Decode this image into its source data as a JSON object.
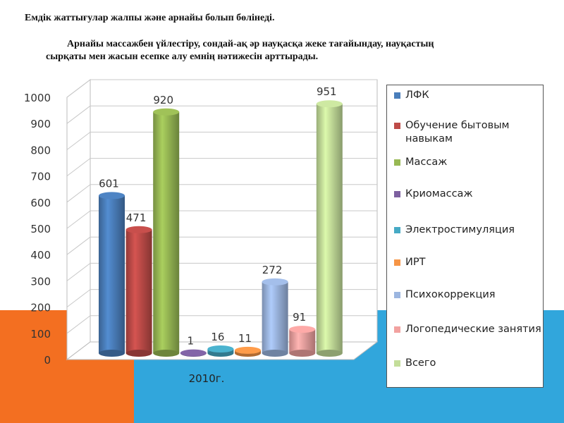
{
  "text": {
    "line1": "Емдік жаттығулар жалпы және арнайы болып бөлінеді.",
    "line2": "Арнайы массажбен үйлестіру, сондай-ақ әр науқасқа жеке тағайындау, науқастың",
    "line3": "сырқаты мен жасын есепке алу емнің нәтижесін арттырады."
  },
  "chart_data": {
    "type": "bar",
    "categories": [
      "2010г."
    ],
    "ylim": [
      0,
      1000
    ],
    "yticks": [
      0,
      100,
      200,
      300,
      400,
      500,
      600,
      700,
      800,
      900,
      1000
    ],
    "legend_position": "right",
    "grid": true,
    "series": [
      {
        "name": "ЛФК",
        "values": [
          601
        ],
        "color": "#4a7ebb"
      },
      {
        "name": "Обучение бытовым навыкам",
        "values": [
          471
        ],
        "color": "#be4b48"
      },
      {
        "name": "Массаж",
        "values": [
          920
        ],
        "color": "#98b954"
      },
      {
        "name": "Криомассаж",
        "values": [
          1
        ],
        "color": "#7d60a0"
      },
      {
        "name": "Электростимуляция",
        "values": [
          16
        ],
        "color": "#46aac5"
      },
      {
        "name": "ИРТ",
        "values": [
          11
        ],
        "color": "#f69546"
      },
      {
        "name": "Психокоррекция",
        "values": [
          272
        ],
        "color": "#9cb6e0"
      },
      {
        "name": "Логопедические занятия",
        "values": [
          91
        ],
        "color": "#f2a2a0"
      },
      {
        "name": "Всего",
        "values": [
          951
        ],
        "color": "#c4de9a"
      }
    ]
  }
}
